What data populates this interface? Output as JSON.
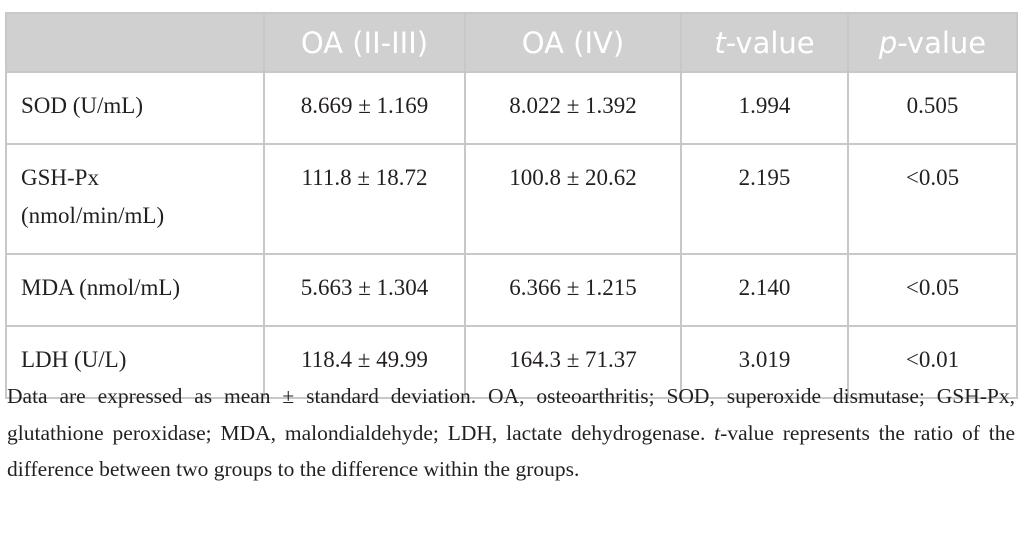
{
  "table": {
    "columns": [
      "OA (II-III)",
      "OA (IV)",
      {
        "italic": "t",
        "rest": "-value"
      },
      {
        "italic": "p",
        "rest": "-value"
      }
    ],
    "rows": [
      {
        "label": "SOD (U/mL)",
        "cells": [
          "8.669 ± 1.169",
          "8.022 ± 1.392",
          "1.994",
          "0.505"
        ]
      },
      {
        "label": "GSH-Px (nmol/min/mL)",
        "cells": [
          "111.8 ± 18.72",
          "100.8 ± 20.62",
          "2.195",
          "<0.05"
        ]
      },
      {
        "label": "MDA (nmol/mL)",
        "cells": [
          "5.663 ± 1.304",
          "6.366 ± 1.215",
          "2.140",
          "<0.05"
        ]
      },
      {
        "label": "LDH (U/L)",
        "cells": [
          "118.4 ± 49.99",
          "164.3 ± 71.37",
          "3.019",
          "<0.01"
        ]
      }
    ]
  },
  "caption": {
    "text1": "Data are expressed as mean ± standard deviation. OA, osteoarthritis; SOD, superoxide dismutase; GSH-Px, glutathione peroxidase; MDA, malondialdehyde; LDH, lactate dehydrogenase. ",
    "italic": "t",
    "text2": "-value represents the ratio of the difference between two groups to the difference within the groups."
  }
}
